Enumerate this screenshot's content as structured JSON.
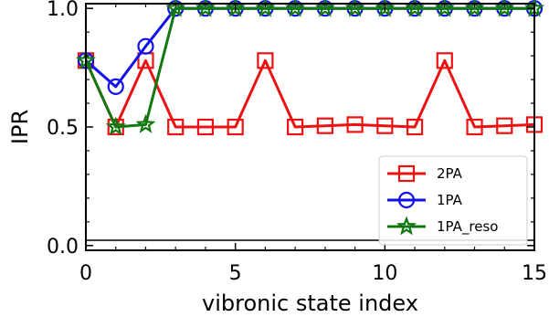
{
  "chart_data": {
    "type": "line",
    "xlabel": "vibronic state index",
    "ylabel": "IPR",
    "xlim": [
      0,
      15
    ],
    "ylim": [
      -0.02,
      1.02
    ],
    "xticks": [
      0,
      5,
      10,
      15
    ],
    "yticks": [
      0.0,
      0.5,
      1.0
    ],
    "xtick_labels": [
      "0",
      "5",
      "10",
      "15"
    ],
    "ytick_labels": [
      "0.0",
      "0.5",
      "1.0"
    ],
    "grid": false,
    "legend_position": "bottom-right",
    "x": [
      0,
      1,
      2,
      3,
      4,
      5,
      6,
      7,
      8,
      9,
      10,
      11,
      12,
      13,
      14,
      15
    ],
    "series": [
      {
        "name": "2PA",
        "color": "#ee1111",
        "marker": "square",
        "values": [
          0.78,
          0.5,
          0.78,
          0.5,
          0.5,
          0.5,
          0.78,
          0.5,
          0.505,
          0.51,
          0.505,
          0.5,
          0.78,
          0.5,
          0.505,
          0.51
        ]
      },
      {
        "name": "1PA",
        "color": "#1111ee",
        "marker": "circle",
        "values": [
          0.78,
          0.67,
          0.84,
          1.0,
          1.0,
          1.0,
          1.0,
          1.0,
          1.0,
          1.0,
          1.0,
          1.0,
          1.0,
          1.0,
          1.0,
          1.0
        ]
      },
      {
        "name": "1PA_reso",
        "color": "#117711",
        "marker": "star",
        "values": [
          0.78,
          0.5,
          0.51,
          1.0,
          1.0,
          1.0,
          1.0,
          1.0,
          1.0,
          1.0,
          1.0,
          1.0,
          1.0,
          1.0,
          1.0,
          1.0
        ]
      }
    ]
  }
}
